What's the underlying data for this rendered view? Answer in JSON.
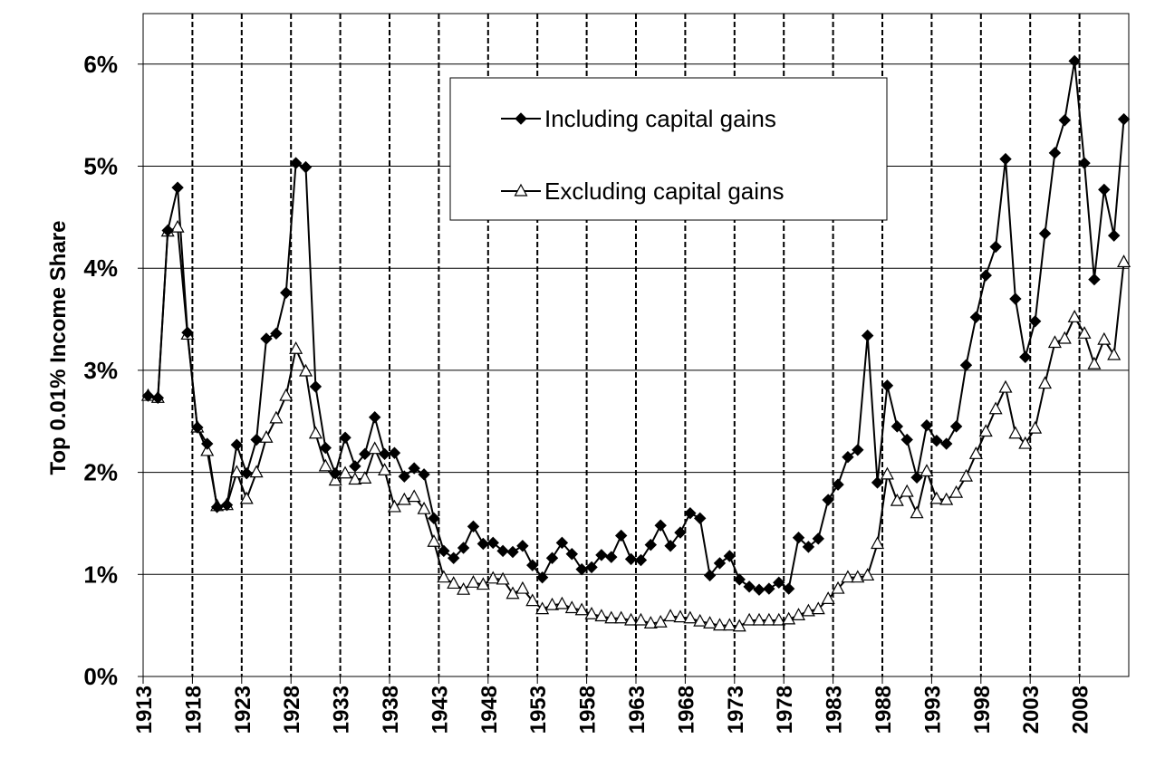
{
  "chart_data": {
    "type": "line",
    "title": "",
    "xlabel": "",
    "ylabel": "Top 0.01% Income Share",
    "xlim": [
      1913,
      2012
    ],
    "ylim": [
      0,
      6.5
    ],
    "x_tick_labels": [
      "1913",
      "1918",
      "1923",
      "1928",
      "1933",
      "1938",
      "1943",
      "1948",
      "1953",
      "1958",
      "1963",
      "1968",
      "1973",
      "1978",
      "1983",
      "1988",
      "1993",
      "1998",
      "2003",
      "2008"
    ],
    "y_tick_labels": [
      "0%",
      "1%",
      "2%",
      "3%",
      "4%",
      "5%",
      "6%"
    ],
    "y_tick_values": [
      0,
      1,
      2,
      3,
      4,
      5,
      6
    ],
    "grid": "horizontal solid gridlines; vertical dashed lines every 5 years",
    "legend_position": "top-center",
    "series": [
      {
        "name": "Including capital gains",
        "marker": "filled-diamond",
        "color": "#000000",
        "values": [
          2.75,
          2.73,
          4.37,
          4.79,
          3.37,
          2.44,
          2.28,
          1.66,
          1.68,
          2.27,
          1.99,
          2.32,
          3.31,
          3.36,
          3.76,
          5.03,
          4.99,
          2.84,
          2.24,
          1.99,
          2.34,
          2.06,
          2.18,
          2.54,
          2.18,
          2.19,
          1.96,
          2.04,
          1.98,
          1.55,
          1.23,
          1.16,
          1.26,
          1.47,
          1.3,
          1.31,
          1.23,
          1.22,
          1.28,
          1.09,
          0.97,
          1.16,
          1.31,
          1.2,
          1.05,
          1.07,
          1.19,
          1.17,
          1.38,
          1.15,
          1.14,
          1.29,
          1.48,
          1.28,
          1.41,
          1.6,
          1.55,
          0.99,
          1.11,
          1.18,
          0.95,
          0.88,
          0.85,
          0.86,
          0.92,
          0.86,
          1.36,
          1.27,
          1.35,
          1.73,
          1.88,
          2.15,
          2.22,
          3.34,
          1.9,
          2.85,
          2.45,
          2.32,
          1.95,
          2.46,
          2.31,
          2.28,
          2.45,
          3.05,
          3.52,
          3.93,
          4.21,
          5.07,
          3.7,
          3.13,
          3.48,
          4.34,
          5.13,
          5.45,
          6.03,
          5.03,
          3.89,
          4.77,
          4.32,
          5.46
        ]
      },
      {
        "name": "Excluding capital gains",
        "marker": "open-triangle",
        "color": "#000000",
        "values": [
          2.75,
          2.73,
          4.36,
          4.4,
          3.35,
          2.44,
          2.21,
          1.67,
          1.68,
          2.0,
          1.74,
          2.0,
          2.34,
          2.53,
          2.75,
          3.21,
          2.99,
          2.38,
          2.06,
          1.92,
          1.99,
          1.93,
          1.94,
          2.23,
          2.02,
          1.66,
          1.73,
          1.76,
          1.64,
          1.32,
          0.97,
          0.91,
          0.85,
          0.92,
          0.9,
          0.96,
          0.95,
          0.81,
          0.86,
          0.74,
          0.66,
          0.7,
          0.71,
          0.67,
          0.65,
          0.61,
          0.59,
          0.57,
          0.57,
          0.55,
          0.55,
          0.52,
          0.53,
          0.59,
          0.58,
          0.57,
          0.54,
          0.52,
          0.5,
          0.5,
          0.49,
          0.55,
          0.55,
          0.55,
          0.55,
          0.56,
          0.6,
          0.64,
          0.66,
          0.76,
          0.86,
          0.97,
          0.97,
          0.99,
          1.3,
          1.98,
          1.72,
          1.81,
          1.6,
          2.01,
          1.74,
          1.73,
          1.8,
          1.96,
          2.18,
          2.4,
          2.62,
          2.83,
          2.38,
          2.28,
          2.43,
          2.87,
          3.27,
          3.31,
          3.52,
          3.36,
          3.06,
          3.3,
          3.15,
          4.06
        ]
      }
    ]
  }
}
